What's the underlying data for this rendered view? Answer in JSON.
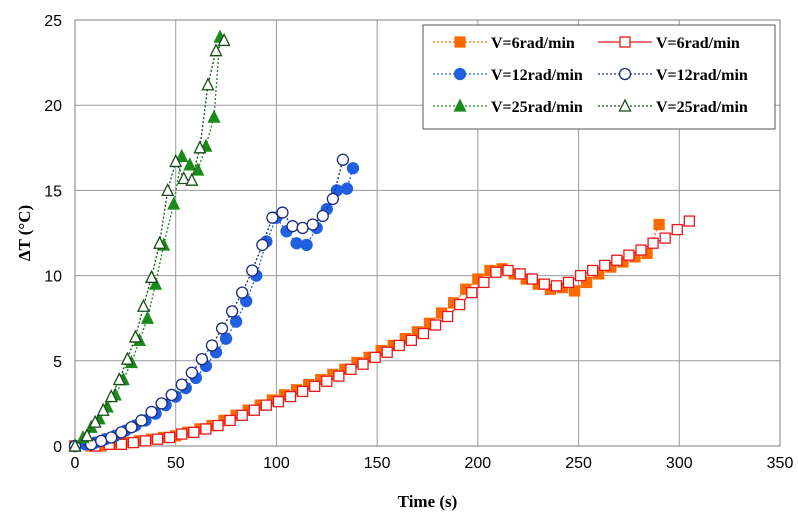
{
  "chart_data": {
    "type": "scatter",
    "xlabel": "Time (s)",
    "ylabel": "ΔT (°C)",
    "xlim": [
      0,
      350
    ],
    "ylim": [
      0,
      25
    ],
    "xticks": [
      "0",
      "50",
      "100",
      "150",
      "200",
      "250",
      "300",
      "350"
    ],
    "yticks": [
      "0",
      "5",
      "10",
      "15",
      "20",
      "25"
    ],
    "grid": true,
    "legend_position": "top-right",
    "series": [
      {
        "name": "V=6rad/min",
        "marker": "square-filled",
        "line": "dotted",
        "color": "#ff6a00",
        "x": [
          0,
          8,
          13,
          20,
          26,
          32,
          38,
          44,
          50,
          56,
          62,
          68,
          74,
          80,
          86,
          92,
          98,
          104,
          110,
          116,
          122,
          128,
          134,
          140,
          146,
          152,
          158,
          164,
          170,
          176,
          182,
          188,
          194,
          200,
          206,
          212,
          218,
          224,
          230,
          236,
          242,
          248,
          254,
          260,
          266,
          272,
          278,
          284,
          290
        ],
        "y": [
          0,
          0,
          0,
          0.1,
          0.2,
          0.3,
          0.4,
          0.5,
          0.6,
          0.8,
          1.0,
          1.2,
          1.5,
          1.8,
          2.1,
          2.4,
          2.7,
          3.0,
          3.3,
          3.6,
          3.9,
          4.2,
          4.5,
          4.9,
          5.2,
          5.6,
          5.9,
          6.3,
          6.7,
          7.2,
          7.8,
          8.4,
          9.2,
          9.8,
          10.3,
          10.4,
          10.1,
          9.8,
          9.5,
          9.2,
          9.3,
          9.1,
          9.6,
          10.1,
          10.5,
          10.8,
          11.1,
          11.3,
          13.0
        ]
      },
      {
        "name": "V=6rad/min",
        "marker": "square-open",
        "line": "solid",
        "color": "#e8191c",
        "x": [
          0,
          10,
          17,
          23,
          29,
          35,
          41,
          47,
          53,
          59,
          65,
          71,
          77,
          83,
          89,
          95,
          101,
          107,
          113,
          119,
          125,
          131,
          137,
          143,
          149,
          155,
          161,
          167,
          173,
          179,
          185,
          191,
          197,
          203,
          209,
          215,
          221,
          227,
          233,
          239,
          245,
          251,
          257,
          263,
          269,
          275,
          281,
          287,
          293,
          299,
          305
        ],
        "y": [
          0,
          0,
          0.1,
          0.1,
          0.2,
          0.3,
          0.4,
          0.5,
          0.7,
          0.8,
          1.0,
          1.2,
          1.5,
          1.8,
          2.1,
          2.4,
          2.6,
          2.9,
          3.2,
          3.5,
          3.8,
          4.1,
          4.5,
          4.8,
          5.2,
          5.5,
          5.9,
          6.2,
          6.6,
          7.1,
          7.6,
          8.3,
          9.0,
          9.6,
          10.2,
          10.3,
          10.1,
          9.8,
          9.5,
          9.4,
          9.6,
          10.0,
          10.3,
          10.6,
          10.9,
          11.2,
          11.5,
          11.9,
          12.2,
          12.7,
          13.2
        ]
      },
      {
        "name": "V=12rad/min",
        "marker": "circle-filled",
        "line": "dotted",
        "color": "#1f5fe0",
        "x": [
          0,
          5,
          10,
          15,
          20,
          25,
          30,
          35,
          40,
          45,
          50,
          55,
          60,
          65,
          70,
          75,
          80,
          85,
          90,
          95,
          100,
          105,
          110,
          115,
          120,
          125,
          130,
          135,
          138
        ],
        "y": [
          0,
          0.1,
          0.2,
          0.4,
          0.6,
          0.9,
          1.2,
          1.5,
          1.9,
          2.4,
          2.9,
          3.4,
          4.0,
          4.7,
          5.5,
          6.3,
          7.3,
          8.5,
          10.0,
          12.0,
          13.4,
          12.6,
          11.9,
          11.8,
          12.8,
          13.9,
          15.0,
          15.1,
          16.3
        ]
      },
      {
        "name": "V=12rad/min",
        "marker": "circle-open",
        "line": "dotted",
        "color": "#1a2a80",
        "x": [
          0,
          8,
          13,
          18,
          23,
          28,
          33,
          38,
          43,
          48,
          53,
          58,
          63,
          68,
          73,
          78,
          83,
          88,
          93,
          98,
          103,
          108,
          113,
          118,
          123,
          128,
          133
        ],
        "y": [
          0,
          0.1,
          0.3,
          0.5,
          0.8,
          1.1,
          1.5,
          2.0,
          2.5,
          3.0,
          3.6,
          4.3,
          5.1,
          5.9,
          6.9,
          7.9,
          9.0,
          10.3,
          11.8,
          13.4,
          13.7,
          12.9,
          12.8,
          13.0,
          13.5,
          14.5,
          16.8
        ]
      },
      {
        "name": "V=25rad/min",
        "marker": "triangle-filled",
        "line": "dotted",
        "color": "#1a8a1a",
        "x": [
          0,
          4,
          8,
          12,
          16,
          20,
          24,
          28,
          32,
          36,
          40,
          44,
          49,
          53,
          57,
          61,
          65,
          69,
          72
        ],
        "y": [
          0,
          0.5,
          1.1,
          1.6,
          2.3,
          3.0,
          3.9,
          4.9,
          6.2,
          7.5,
          9.5,
          11.8,
          14.2,
          17.0,
          16.5,
          16.2,
          17.6,
          19.3,
          24.0
        ]
      },
      {
        "name": "V=25rad/min",
        "marker": "triangle-open",
        "line": "dotted",
        "color": "#1a4a1a",
        "x": [
          0,
          6,
          10,
          14,
          18,
          22,
          26,
          30,
          34,
          38,
          42,
          46,
          50,
          54,
          58,
          62,
          66,
          70,
          74
        ],
        "y": [
          0,
          0.6,
          1.4,
          2.1,
          2.9,
          3.9,
          5.1,
          6.4,
          8.2,
          9.9,
          11.9,
          15.0,
          16.7,
          15.7,
          15.6,
          17.5,
          21.2,
          23.2,
          23.8
        ]
      }
    ]
  }
}
